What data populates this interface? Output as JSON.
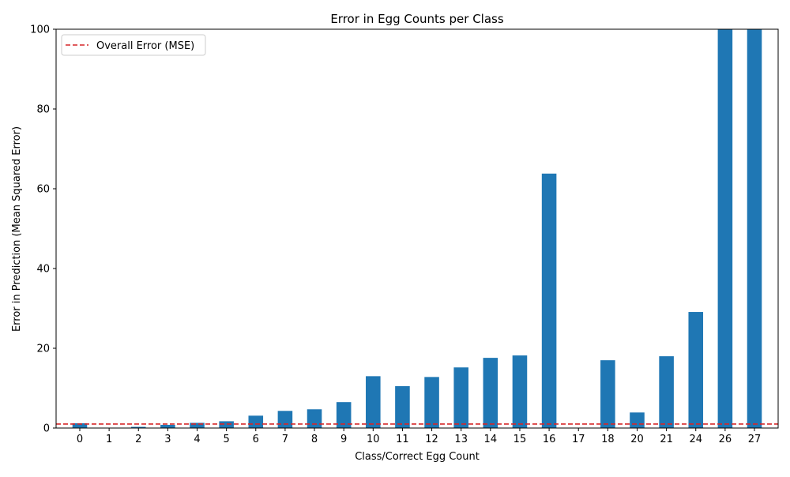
{
  "chart_data": {
    "type": "bar",
    "title": "Error in Egg Counts per Class",
    "xlabel": "Class/Correct Egg Count",
    "ylabel": "Error in Prediction (Mean Squared Error)",
    "categories": [
      "0",
      "1",
      "2",
      "3",
      "4",
      "5",
      "6",
      "7",
      "8",
      "9",
      "10",
      "11",
      "12",
      "13",
      "14",
      "15",
      "16",
      "17",
      "18",
      "20",
      "21",
      "24",
      "26",
      "27"
    ],
    "values": [
      1.2,
      0,
      0.3,
      0.8,
      1.3,
      1.7,
      3.1,
      4.3,
      4.7,
      6.5,
      13.0,
      10.5,
      12.8,
      15.2,
      17.6,
      18.2,
      63.8,
      0,
      17.0,
      3.9,
      18.0,
      29.1,
      100,
      100
    ],
    "ylim": [
      0,
      100
    ],
    "yticks": [
      "0",
      "20",
      "40",
      "60",
      "80",
      "100"
    ],
    "bar_color": "#1f77b4",
    "reference_line": {
      "label": "Overall Error (MSE)",
      "value": 1.0,
      "color": "#d62728",
      "style": "dashed"
    },
    "legend": {
      "position": "top-left"
    },
    "grid": false
  }
}
